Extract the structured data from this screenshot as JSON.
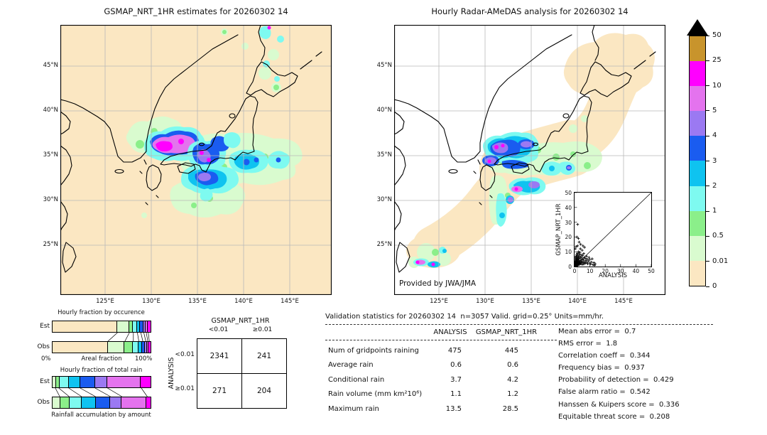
{
  "left_map": {
    "title": "GSMAP_NRT_1HR estimates for 20260302 14",
    "lat_labels": [
      "45°N",
      "40°N",
      "35°N",
      "30°N",
      "25°N"
    ],
    "lon_labels": [
      "125°E",
      "130°E",
      "135°E",
      "140°E",
      "145°E"
    ],
    "background_color": "#fbe7c2"
  },
  "right_map": {
    "title": "Hourly Radar-AMeDAS analysis for 20260302 14",
    "lat_labels": [
      "45°N",
      "40°N",
      "35°N",
      "30°N",
      "25°N"
    ],
    "lon_labels": [
      "125°E",
      "130°E",
      "135°E",
      "140°E",
      "145°E"
    ],
    "credit": "Provided by JWA/JMA",
    "background_color": "#ffffff",
    "coverage_color": "#fbe7c2"
  },
  "colorbar": {
    "labels": [
      "50",
      "25",
      "10",
      "5",
      "4",
      "3",
      "2",
      "1",
      "0.5",
      "0.01",
      "0"
    ],
    "colors": [
      "#c8942c",
      "#ff00ff",
      "#e473ee",
      "#9b79f2",
      "#1a5cf0",
      "#0fc3f0",
      "#7efaf0",
      "#8bef8a",
      "#d9fbcf",
      "#fbe7c2"
    ],
    "overflow_marker": "black-triangle",
    "units": "mm/hr"
  },
  "occurrence_chart": {
    "title": "Hourly fraction by occurence",
    "row_labels": [
      "Est",
      "Obs"
    ],
    "xlabel": "Areal fraction",
    "x_min_label": "0%",
    "x_max_label": "100%"
  },
  "totalrain_chart": {
    "title": "Hourly fraction of total rain",
    "row_labels": [
      "Est",
      "Obs"
    ],
    "caption": "Rainfall accumulation by amount"
  },
  "contingency": {
    "col_title": "GSMAP_NRT_1HR",
    "row_title": "ANALYSIS",
    "col_labels": [
      "<0.01",
      "≥0.01"
    ],
    "row_labels": [
      "<0.01",
      "≥0.01"
    ],
    "cells": [
      [
        "2341",
        "241"
      ],
      [
        "271",
        "204"
      ]
    ]
  },
  "validation": {
    "header": "Validation statistics for 20260302 14  n=3057 Valid. grid=0.25° Units=mm/hr.",
    "col_headers": [
      "ANALYSIS",
      "GSMAP_NRT_1HR"
    ],
    "rows": [
      {
        "label": "Num of gridpoints raining",
        "analysis": "475",
        "gsmap": "445"
      },
      {
        "label": "Average rain",
        "analysis": "0.6",
        "gsmap": "0.6"
      },
      {
        "label": "Conditional rain",
        "analysis": "3.7",
        "gsmap": "4.2"
      },
      {
        "label": "Rain volume (mm km²10⁶)",
        "analysis": "1.1",
        "gsmap": "1.2"
      },
      {
        "label": "Maximum rain",
        "analysis": "13.5",
        "gsmap": "28.5"
      }
    ],
    "scores": [
      {
        "label": "Mean abs error",
        "value": "0.7"
      },
      {
        "label": "RMS error",
        "value": "1.8"
      },
      {
        "label": "Correlation coeff",
        "value": "0.344"
      },
      {
        "label": "Frequency bias",
        "value": "0.937"
      },
      {
        "label": "Probability of detection",
        "value": "0.429"
      },
      {
        "label": "False alarm ratio",
        "value": "0.542"
      },
      {
        "label": "Hanssen & Kuipers score",
        "value": "0.336"
      },
      {
        "label": "Equitable threat score",
        "value": "0.208"
      }
    ]
  },
  "inset": {
    "xlabel": "ANALYSIS",
    "ylabel": "GSMAP_NRT_1HR",
    "xticks": [
      "0",
      "10",
      "20",
      "30",
      "40",
      "50"
    ],
    "yticks": [
      "50",
      "40",
      "30",
      "20",
      "10",
      "0"
    ]
  },
  "chart_data": [
    {
      "type": "bar",
      "stacked": true,
      "orientation": "horizontal",
      "title": "Hourly fraction by occurence",
      "xlabel": "Areal fraction",
      "x_range_percent": [
        0,
        100
      ],
      "categories": [
        "Est",
        "Obs"
      ],
      "bins_mm_hr": [
        "0-0.01",
        "0.01-0.5",
        "0.5-1",
        "1-2",
        "2-3",
        "3-4",
        "4-5",
        "5-10",
        "10-25"
      ],
      "colors": [
        "#fbe7c2",
        "#d9fbcf",
        "#8bef8a",
        "#7efaf0",
        "#0fc3f0",
        "#1a5cf0",
        "#9b79f2",
        "#e473ee",
        "#ff00ff"
      ],
      "series": [
        {
          "name": "Est",
          "values": [
            66,
            12,
            4,
            4,
            3.5,
            3,
            2.5,
            2,
            3
          ]
        },
        {
          "name": "Obs",
          "values": [
            56.5,
            17,
            8.5,
            5.5,
            4,
            3,
            2,
            1.5,
            2
          ]
        }
      ]
    },
    {
      "type": "bar",
      "stacked": true,
      "orientation": "horizontal",
      "title": "Hourly fraction of total rain",
      "caption": "Rainfall accumulation by amount",
      "x_range_percent": [
        0,
        100
      ],
      "categories": [
        "Est",
        "Obs"
      ],
      "bins_mm_hr": [
        "0.01-0.5",
        "0.5-1",
        "1-2",
        "2-3",
        "3-4",
        "4-5",
        "5-10",
        "10-25"
      ],
      "colors": [
        "#d9fbcf",
        "#8bef8a",
        "#7efaf0",
        "#0fc3f0",
        "#1a5cf0",
        "#9b79f2",
        "#e473ee",
        "#ff00ff"
      ],
      "series": [
        {
          "name": "Est",
          "values": [
            3.5,
            3.5,
            10,
            11.5,
            15,
            12.5,
            34,
            10
          ]
        },
        {
          "name": "Obs",
          "values": [
            8,
            9.5,
            12.5,
            14,
            15,
            11.5,
            25.5,
            4
          ]
        }
      ]
    },
    {
      "type": "table",
      "name": "contingency-table",
      "col_group": "GSMAP_NRT_1HR",
      "row_group": "ANALYSIS",
      "columns": [
        "<0.01",
        "≥0.01"
      ],
      "rows": [
        "<0.01",
        "≥0.01"
      ],
      "values": [
        [
          2341,
          241
        ],
        [
          271,
          204
        ]
      ]
    },
    {
      "type": "scatter",
      "xlabel": "ANALYSIS",
      "ylabel": "GSMAP_NRT_1HR",
      "xlim": [
        0,
        50
      ],
      "ylim": [
        0,
        50
      ],
      "marker": "+",
      "diagonal": true,
      "points": [
        [
          0.1,
          0.1
        ],
        [
          0.1,
          0.6
        ],
        [
          0.2,
          0.3
        ],
        [
          0.2,
          1.2
        ],
        [
          0.2,
          2.5
        ],
        [
          0.3,
          0.8
        ],
        [
          0.3,
          1.8
        ],
        [
          0.4,
          0.4
        ],
        [
          0.4,
          3.2
        ],
        [
          0.5,
          1
        ],
        [
          0.5,
          2.2
        ],
        [
          0.5,
          6
        ],
        [
          0.5,
          12
        ],
        [
          0.6,
          0.6
        ],
        [
          0.6,
          4
        ],
        [
          0.7,
          1.5
        ],
        [
          0.7,
          2.8
        ],
        [
          0.8,
          0.9
        ],
        [
          0.8,
          5
        ],
        [
          0.9,
          1.9
        ],
        [
          0.9,
          3.6
        ],
        [
          1,
          0.5
        ],
        [
          1,
          2.4
        ],
        [
          1,
          7
        ],
        [
          1,
          13.5
        ],
        [
          1.1,
          1.3
        ],
        [
          1.1,
          4.4
        ],
        [
          1.2,
          0.7
        ],
        [
          1.2,
          3
        ],
        [
          1.3,
          2
        ],
        [
          1.3,
          5.6
        ],
        [
          1.4,
          1.1
        ],
        [
          1.4,
          8
        ],
        [
          1.5,
          2.9
        ],
        [
          1.5,
          4.9
        ],
        [
          1.5,
          20
        ],
        [
          1.6,
          0.9
        ],
        [
          1.6,
          6.4
        ],
        [
          1.7,
          2.2
        ],
        [
          1.8,
          3.9
        ],
        [
          1.8,
          9
        ],
        [
          1.9,
          1.4
        ],
        [
          2,
          2.7
        ],
        [
          2,
          5.2
        ],
        [
          2,
          14
        ],
        [
          2,
          28.5
        ],
        [
          2.1,
          0.8
        ],
        [
          2.2,
          3.4
        ],
        [
          2.2,
          7.4
        ],
        [
          2.3,
          1.7
        ],
        [
          2.4,
          4.6
        ],
        [
          2.5,
          2.5
        ],
        [
          2.5,
          10
        ],
        [
          2.5,
          19
        ],
        [
          2.6,
          6
        ],
        [
          2.7,
          1.2
        ],
        [
          2.8,
          3.8
        ],
        [
          2.9,
          8.4
        ],
        [
          3,
          2
        ],
        [
          3,
          5.4
        ],
        [
          3,
          16.5
        ],
        [
          3.2,
          1.5
        ],
        [
          3.2,
          7
        ],
        [
          3.4,
          3.3
        ],
        [
          3.5,
          9.6
        ],
        [
          3.6,
          2.4
        ],
        [
          3.8,
          5.8
        ],
        [
          3.8,
          12
        ],
        [
          4,
          1.8
        ],
        [
          4,
          4.2
        ],
        [
          4,
          15
        ],
        [
          4.2,
          8
        ],
        [
          4.4,
          2.8
        ],
        [
          4.5,
          6.4
        ],
        [
          4.8,
          3.6
        ],
        [
          5,
          1.4
        ],
        [
          5,
          5
        ],
        [
          5,
          11
        ],
        [
          5.3,
          7.6
        ],
        [
          5.5,
          2.6
        ],
        [
          5.5,
          14
        ],
        [
          5.8,
          4.4
        ],
        [
          6,
          1.6
        ],
        [
          6,
          8.8
        ],
        [
          6.2,
          6
        ],
        [
          6.5,
          3.2
        ],
        [
          6.5,
          13
        ],
        [
          7,
          2.2
        ],
        [
          7,
          5.6
        ],
        [
          7.4,
          4
        ],
        [
          7.8,
          7
        ],
        [
          8,
          2.8
        ],
        [
          8.3,
          5
        ],
        [
          8.6,
          1.8
        ],
        [
          9,
          3.8
        ],
        [
          9.4,
          6.2
        ],
        [
          9.8,
          2.4
        ],
        [
          10,
          4.8
        ],
        [
          10.5,
          1.6
        ],
        [
          11,
          3
        ],
        [
          11.5,
          5.2
        ],
        [
          12,
          1.2
        ],
        [
          12.6,
          2.6
        ],
        [
          13,
          0.8
        ],
        [
          13.5,
          1.8
        ]
      ]
    },
    {
      "type": "heatmap",
      "name": "gsmap-precip-map",
      "title": "GSMAP_NRT_1HR estimates for 20260302 14",
      "units": "mm/hr",
      "lon_ticks": [
        125,
        130,
        135,
        140,
        145
      ],
      "lat_ticks": [
        45,
        40,
        35,
        30,
        25
      ],
      "background": "#fbe7c2",
      "notable_regions": [
        {
          "lon": 131.5,
          "lat": 36.2,
          "peak_level": "10-25"
        },
        {
          "lon": 135.3,
          "lat": 34.8,
          "peak_level": "10-25"
        },
        {
          "lon": 135.5,
          "lat": 32.9,
          "peak_level": "4-5"
        },
        {
          "lon": 140.0,
          "lat": 34.6,
          "peak_level": "3-4"
        },
        {
          "lon": 143.0,
          "lat": 34.5,
          "peak_level": "3-4"
        },
        {
          "lon": 135.0,
          "lat": 30.5,
          "peak_level": "0.01-0.5"
        },
        {
          "lon": 142.5,
          "lat": 47.5,
          "peak_level": "1-2"
        }
      ]
    },
    {
      "type": "heatmap",
      "name": "radar-amedas-precip-map",
      "title": "Hourly Radar-AMeDAS analysis for 20260302 14",
      "units": "mm/hr",
      "lon_ticks": [
        125,
        130,
        135,
        140,
        145
      ],
      "lat_ticks": [
        45,
        40,
        35,
        30,
        25
      ],
      "background": "#ffffff",
      "coverage_color": "#fbe7c2",
      "notable_regions": [
        {
          "lon": 131.0,
          "lat": 35.8,
          "peak_level": "10-25"
        },
        {
          "lon": 134.3,
          "lat": 35.5,
          "peak_level": "4-5"
        },
        {
          "lon": 133.5,
          "lat": 32.9,
          "peak_level": "5-10"
        },
        {
          "lon": 139.0,
          "lat": 34.7,
          "peak_level": "4-5"
        },
        {
          "lon": 131.0,
          "lat": 30.0,
          "peak_level": "4-5"
        },
        {
          "lon": 125.5,
          "lat": 26.2,
          "peak_level": "10-25"
        }
      ]
    }
  ]
}
